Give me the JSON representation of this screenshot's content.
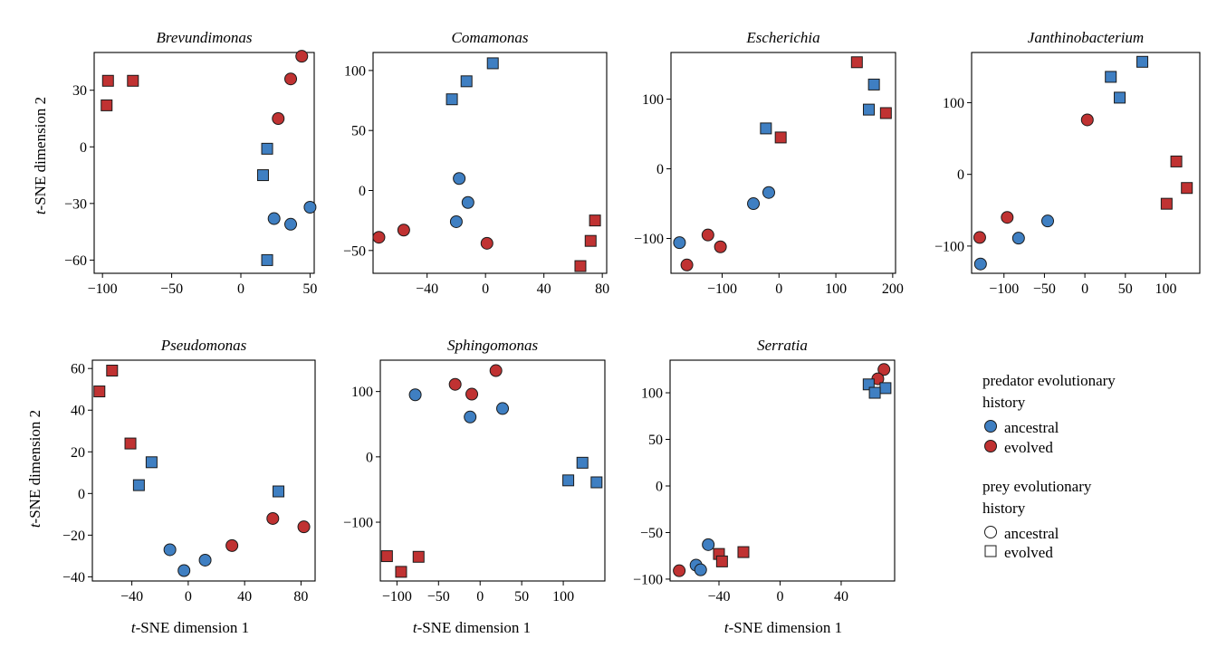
{
  "figure": {
    "xlabel": "t-SNE dimension 1",
    "ylabel": "t-SNE dimension 2"
  },
  "colors": {
    "ancestral": "#3f7fc2",
    "evolved": "#c03232",
    "marker_edge": "#1a1a1a"
  },
  "legend": {
    "predator_title_line1": "predator evolutionary",
    "predator_title_line2": "history",
    "predator_items": [
      {
        "label": "ancestral",
        "color": "ancestral"
      },
      {
        "label": "evolved",
        "color": "evolved"
      }
    ],
    "prey_title_line1": "prey evolutionary",
    "prey_title_line2": "history",
    "prey_items": [
      {
        "label": "ancestral",
        "marker": "circle"
      },
      {
        "label": "evolved",
        "marker": "square"
      }
    ]
  },
  "chart_data": [
    {
      "type": "scatter",
      "title": "Brevundimonas",
      "xlim": [
        -106,
        53
      ],
      "ylim": [
        -67,
        50
      ],
      "xticks": [
        -100,
        -50,
        0,
        50
      ],
      "yticks": [
        -60,
        -30,
        0,
        30
      ],
      "points": [
        {
          "x": -96,
          "y": 35,
          "predator": "evolved",
          "prey": "evolved"
        },
        {
          "x": -78,
          "y": 35,
          "predator": "evolved",
          "prey": "evolved"
        },
        {
          "x": -97,
          "y": 22,
          "predator": "evolved",
          "prey": "evolved"
        },
        {
          "x": 44,
          "y": 48,
          "predator": "evolved",
          "prey": "ancestral"
        },
        {
          "x": 36,
          "y": 36,
          "predator": "evolved",
          "prey": "ancestral"
        },
        {
          "x": 27,
          "y": 15,
          "predator": "evolved",
          "prey": "ancestral"
        },
        {
          "x": 19,
          "y": -1,
          "predator": "ancestral",
          "prey": "evolved"
        },
        {
          "x": 16,
          "y": -15,
          "predator": "ancestral",
          "prey": "evolved"
        },
        {
          "x": 50,
          "y": -32,
          "predator": "ancestral",
          "prey": "ancestral"
        },
        {
          "x": 24,
          "y": -38,
          "predator": "ancestral",
          "prey": "ancestral"
        },
        {
          "x": 36,
          "y": -41,
          "predator": "ancestral",
          "prey": "ancestral"
        },
        {
          "x": 19,
          "y": -60,
          "predator": "ancestral",
          "prey": "evolved"
        }
      ]
    },
    {
      "type": "scatter",
      "title": "Comamonas",
      "xlim": [
        -77,
        83
      ],
      "ylim": [
        -69,
        115
      ],
      "xticks": [
        -40,
        0,
        40,
        80
      ],
      "yticks": [
        -50,
        0,
        50,
        100
      ],
      "points": [
        {
          "x": 5,
          "y": 106,
          "predator": "ancestral",
          "prey": "evolved"
        },
        {
          "x": -13,
          "y": 91,
          "predator": "ancestral",
          "prey": "evolved"
        },
        {
          "x": -23,
          "y": 76,
          "predator": "ancestral",
          "prey": "evolved"
        },
        {
          "x": -18,
          "y": 10,
          "predator": "ancestral",
          "prey": "ancestral"
        },
        {
          "x": -12,
          "y": -10,
          "predator": "ancestral",
          "prey": "ancestral"
        },
        {
          "x": -20,
          "y": -26,
          "predator": "ancestral",
          "prey": "ancestral"
        },
        {
          "x": -73,
          "y": -39,
          "predator": "evolved",
          "prey": "ancestral"
        },
        {
          "x": -56,
          "y": -33,
          "predator": "evolved",
          "prey": "ancestral"
        },
        {
          "x": 1,
          "y": -44,
          "predator": "evolved",
          "prey": "ancestral"
        },
        {
          "x": 75,
          "y": -25,
          "predator": "evolved",
          "prey": "evolved"
        },
        {
          "x": 72,
          "y": -42,
          "predator": "evolved",
          "prey": "evolved"
        },
        {
          "x": 65,
          "y": -63,
          "predator": "evolved",
          "prey": "evolved"
        }
      ]
    },
    {
      "type": "scatter",
      "title": "Escherichia",
      "xlim": [
        -190,
        205
      ],
      "ylim": [
        -150,
        167
      ],
      "xticks": [
        -100,
        0,
        100,
        200
      ],
      "yticks": [
        -100,
        0,
        100
      ],
      "points": [
        {
          "x": 137,
          "y": 153,
          "predator": "evolved",
          "prey": "evolved"
        },
        {
          "x": 167,
          "y": 121,
          "predator": "ancestral",
          "prey": "evolved"
        },
        {
          "x": 158,
          "y": 85,
          "predator": "ancestral",
          "prey": "evolved"
        },
        {
          "x": 188,
          "y": 80,
          "predator": "evolved",
          "prey": "evolved"
        },
        {
          "x": -23,
          "y": 58,
          "predator": "ancestral",
          "prey": "evolved"
        },
        {
          "x": 3,
          "y": 45,
          "predator": "evolved",
          "prey": "evolved"
        },
        {
          "x": -18,
          "y": -34,
          "predator": "ancestral",
          "prey": "ancestral"
        },
        {
          "x": -45,
          "y": -50,
          "predator": "ancestral",
          "prey": "ancestral"
        },
        {
          "x": -175,
          "y": -106,
          "predator": "ancestral",
          "prey": "ancestral"
        },
        {
          "x": -125,
          "y": -95,
          "predator": "evolved",
          "prey": "ancestral"
        },
        {
          "x": -103,
          "y": -112,
          "predator": "evolved",
          "prey": "ancestral"
        },
        {
          "x": -162,
          "y": -138,
          "predator": "evolved",
          "prey": "ancestral"
        }
      ]
    },
    {
      "type": "scatter",
      "title": "Janthinobacterium",
      "xlim": [
        -140,
        142
      ],
      "ylim": [
        -138,
        170
      ],
      "xticks": [
        -100,
        -50,
        0,
        50,
        100
      ],
      "yticks": [
        -100,
        0,
        100
      ],
      "points": [
        {
          "x": 71,
          "y": 157,
          "predator": "ancestral",
          "prey": "evolved"
        },
        {
          "x": 32,
          "y": 136,
          "predator": "ancestral",
          "prey": "evolved"
        },
        {
          "x": 43,
          "y": 107,
          "predator": "ancestral",
          "prey": "evolved"
        },
        {
          "x": 3,
          "y": 76,
          "predator": "evolved",
          "prey": "ancestral"
        },
        {
          "x": 113,
          "y": 18,
          "predator": "evolved",
          "prey": "evolved"
        },
        {
          "x": 126,
          "y": -19,
          "predator": "evolved",
          "prey": "evolved"
        },
        {
          "x": 101,
          "y": -41,
          "predator": "evolved",
          "prey": "evolved"
        },
        {
          "x": -96,
          "y": -60,
          "predator": "evolved",
          "prey": "ancestral"
        },
        {
          "x": -46,
          "y": -65,
          "predator": "ancestral",
          "prey": "ancestral"
        },
        {
          "x": -130,
          "y": -88,
          "predator": "evolved",
          "prey": "ancestral"
        },
        {
          "x": -82,
          "y": -89,
          "predator": "ancestral",
          "prey": "ancestral"
        },
        {
          "x": -129,
          "y": -125,
          "predator": "ancestral",
          "prey": "ancestral"
        }
      ]
    },
    {
      "type": "scatter",
      "title": "Pseudomonas",
      "xlim": [
        -68,
        90
      ],
      "ylim": [
        -42,
        64
      ],
      "xticks": [
        -40,
        0,
        40,
        80
      ],
      "yticks": [
        -40,
        -20,
        0,
        20,
        40,
        60
      ],
      "points": [
        {
          "x": -54,
          "y": 59,
          "predator": "evolved",
          "prey": "evolved"
        },
        {
          "x": -63,
          "y": 49,
          "predator": "evolved",
          "prey": "evolved"
        },
        {
          "x": -41,
          "y": 24,
          "predator": "evolved",
          "prey": "evolved"
        },
        {
          "x": -26,
          "y": 15,
          "predator": "ancestral",
          "prey": "evolved"
        },
        {
          "x": -35,
          "y": 4,
          "predator": "ancestral",
          "prey": "evolved"
        },
        {
          "x": 64,
          "y": 1,
          "predator": "ancestral",
          "prey": "evolved"
        },
        {
          "x": 60,
          "y": -12,
          "predator": "evolved",
          "prey": "ancestral"
        },
        {
          "x": 82,
          "y": -16,
          "predator": "evolved",
          "prey": "ancestral"
        },
        {
          "x": 31,
          "y": -25,
          "predator": "evolved",
          "prey": "ancestral"
        },
        {
          "x": -13,
          "y": -27,
          "predator": "ancestral",
          "prey": "ancestral"
        },
        {
          "x": 12,
          "y": -32,
          "predator": "ancestral",
          "prey": "ancestral"
        },
        {
          "x": -3,
          "y": -37,
          "predator": "ancestral",
          "prey": "ancestral"
        }
      ]
    },
    {
      "type": "scatter",
      "title": "Sphingomonas",
      "xlim": [
        -120,
        150
      ],
      "ylim": [
        -190,
        148
      ],
      "xticks": [
        -100,
        -50,
        0,
        50,
        100
      ],
      "yticks": [
        -100,
        0,
        100
      ],
      "points": [
        {
          "x": 19,
          "y": 132,
          "predator": "evolved",
          "prey": "ancestral"
        },
        {
          "x": -30,
          "y": 111,
          "predator": "evolved",
          "prey": "ancestral"
        },
        {
          "x": -10,
          "y": 96,
          "predator": "evolved",
          "prey": "ancestral"
        },
        {
          "x": -78,
          "y": 95,
          "predator": "ancestral",
          "prey": "ancestral"
        },
        {
          "x": 27,
          "y": 74,
          "predator": "ancestral",
          "prey": "ancestral"
        },
        {
          "x": -12,
          "y": 61,
          "predator": "ancestral",
          "prey": "ancestral"
        },
        {
          "x": 123,
          "y": -9,
          "predator": "ancestral",
          "prey": "evolved"
        },
        {
          "x": 106,
          "y": -36,
          "predator": "ancestral",
          "prey": "evolved"
        },
        {
          "x": 140,
          "y": -39,
          "predator": "ancestral",
          "prey": "evolved"
        },
        {
          "x": -112,
          "y": -152,
          "predator": "evolved",
          "prey": "evolved"
        },
        {
          "x": -74,
          "y": -153,
          "predator": "evolved",
          "prey": "evolved"
        },
        {
          "x": -95,
          "y": -176,
          "predator": "evolved",
          "prey": "evolved"
        }
      ]
    },
    {
      "type": "scatter",
      "title": "Serratia",
      "xlim": [
        -72,
        75
      ],
      "ylim": [
        -102,
        135
      ],
      "xticks": [
        -40,
        0,
        40
      ],
      "yticks": [
        -100,
        -50,
        0,
        50,
        100
      ],
      "points": [
        {
          "x": 68,
          "y": 125,
          "predator": "evolved",
          "prey": "ancestral"
        },
        {
          "x": 64,
          "y": 115,
          "predator": "evolved",
          "prey": "ancestral"
        },
        {
          "x": 58,
          "y": 109,
          "predator": "ancestral",
          "prey": "evolved"
        },
        {
          "x": 69,
          "y": 105,
          "predator": "ancestral",
          "prey": "evolved"
        },
        {
          "x": 62,
          "y": 100,
          "predator": "ancestral",
          "prey": "evolved"
        },
        {
          "x": -47,
          "y": -63,
          "predator": "ancestral",
          "prey": "ancestral"
        },
        {
          "x": -40,
          "y": -73,
          "predator": "evolved",
          "prey": "evolved"
        },
        {
          "x": -24,
          "y": -71,
          "predator": "evolved",
          "prey": "evolved"
        },
        {
          "x": -38,
          "y": -81,
          "predator": "evolved",
          "prey": "evolved"
        },
        {
          "x": -55,
          "y": -85,
          "predator": "ancestral",
          "prey": "ancestral"
        },
        {
          "x": -52,
          "y": -90,
          "predator": "ancestral",
          "prey": "ancestral"
        },
        {
          "x": -66,
          "y": -91,
          "predator": "evolved",
          "prey": "ancestral"
        }
      ]
    }
  ]
}
